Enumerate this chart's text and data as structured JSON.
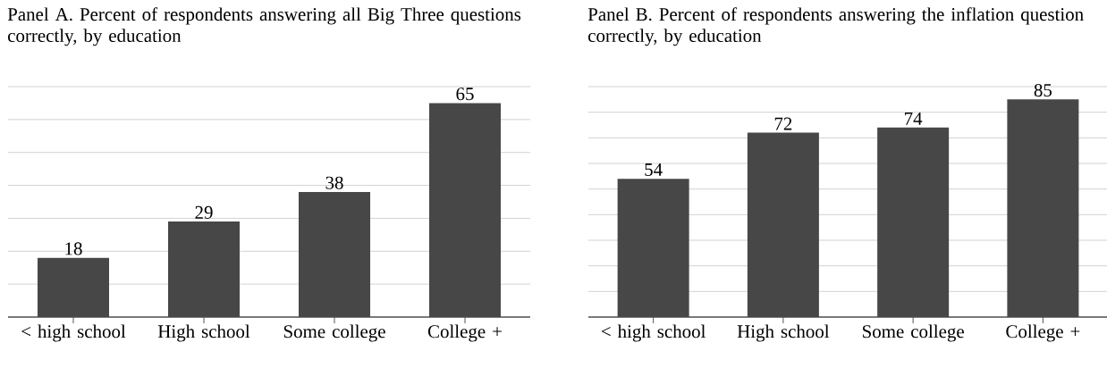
{
  "chart_data": [
    {
      "type": "bar",
      "title": "Panel A. Percent of respondents answering all Big Three questions correctly, by education",
      "categories": [
        "< high school",
        "High school",
        "Some college",
        "College +"
      ],
      "values": [
        18,
        29,
        38,
        65
      ],
      "color": "#474747",
      "data_labels": true,
      "ylim": [
        0,
        70
      ],
      "yticks": [
        {
          "value": 0,
          "label": null
        },
        {
          "value": 10,
          "label": null
        },
        {
          "value": 20,
          "label": null
        },
        {
          "value": 30,
          "label": null
        },
        {
          "value": 40,
          "label": null
        },
        {
          "value": 50,
          "label": null
        },
        {
          "value": 60,
          "label": null
        },
        {
          "value": 70,
          "label": null
        }
      ],
      "grid": "y",
      "tick_labels": "x"
    },
    {
      "type": "bar",
      "title": "Panel B. Percent of respondents answering the inflation question correctly, by education",
      "categories": [
        "< high school",
        "High school",
        "Some college",
        "College +"
      ],
      "values": [
        54,
        72,
        74,
        85
      ],
      "color": "#474747",
      "data_labels": true,
      "ylim": [
        0,
        90
      ],
      "yticks": [
        {
          "value": 0,
          "label": null
        },
        {
          "value": 10,
          "label": null
        },
        {
          "value": 20,
          "label": null
        },
        {
          "value": 30,
          "label": null
        },
        {
          "value": 40,
          "label": null
        },
        {
          "value": 50,
          "label": null
        },
        {
          "value": 60,
          "label": null
        },
        {
          "value": 70,
          "label": null
        },
        {
          "value": 80,
          "label": null
        },
        {
          "value": 90,
          "label": null
        }
      ],
      "grid": "y",
      "tick_labels": "x"
    }
  ]
}
